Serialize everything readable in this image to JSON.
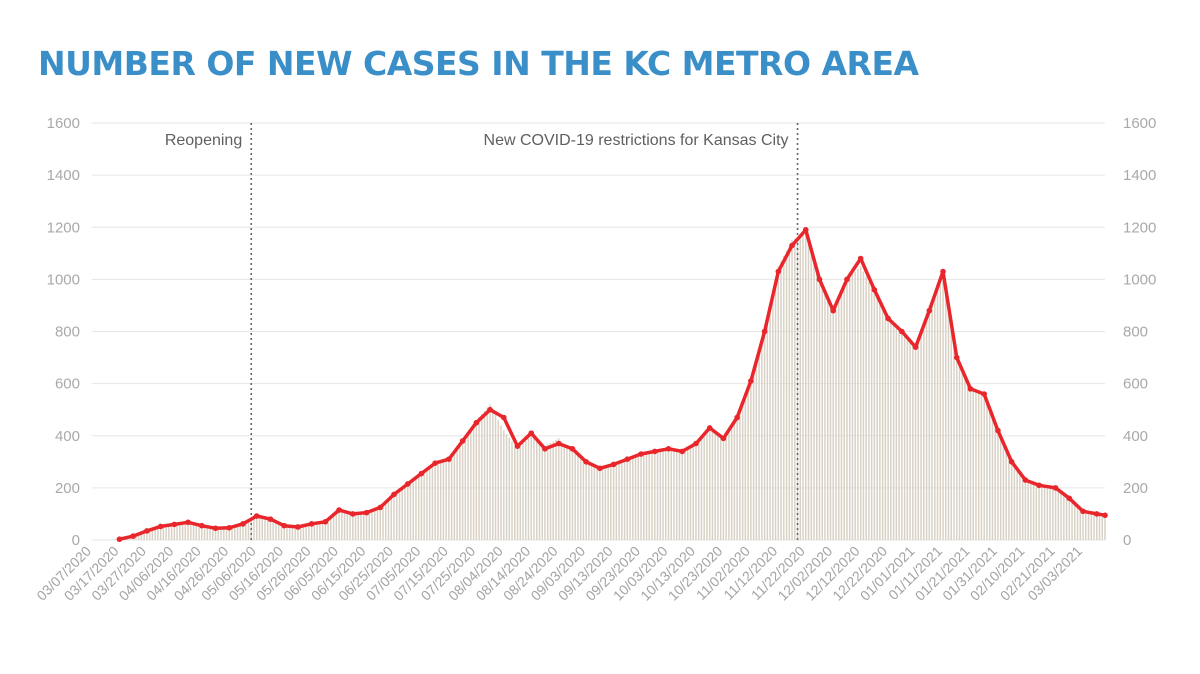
{
  "title": "NUMBER OF NEW CASES IN THE KC METRO AREA",
  "colors": {
    "title": "#3b8fc8",
    "bars": "#d9d1c5",
    "average_line": "#e8262b",
    "grid": "#e6e6e6",
    "annotation_line": "#666666"
  },
  "chart_data": {
    "type": "bar",
    "description_series": [
      {
        "kind": "bar",
        "values_ref": "daily_values"
      },
      {
        "kind": "line",
        "values_ref": "average_values"
      }
    ],
    "x_start": "03/07/2020",
    "x_end": "03/11/2021",
    "x_tick_labels": [
      "03/07/2020",
      "03/17/2020",
      "03/27/2020",
      "04/06/2020",
      "04/16/2020",
      "04/26/2020",
      "05/06/2020",
      "05/16/2020",
      "05/26/2020",
      "06/05/2020",
      "06/15/2020",
      "06/25/2020",
      "07/05/2020",
      "07/15/2020",
      "07/25/2020",
      "08/04/2020",
      "08/14/2020",
      "08/24/2020",
      "09/03/2020",
      "09/13/2020",
      "09/23/2020",
      "10/03/2020",
      "10/13/2020",
      "10/23/2020",
      "11/02/2020",
      "11/12/2020",
      "11/22/2020",
      "12/02/2020",
      "12/12/2020",
      "12/22/2020",
      "01/01/2021",
      "01/11/2021",
      "01/21/2021",
      "01/31/2021",
      "02/10/2021",
      "02/21/2021",
      "03/03/2021"
    ],
    "ylim": [
      0,
      1600
    ],
    "y_ticks": [
      "0",
      "200",
      "400",
      "600",
      "800",
      "1000",
      "1200",
      "1400",
      "1600"
    ],
    "grid": true,
    "xlabel": "",
    "ylabel": "",
    "annotations": [
      {
        "label": "Reopening",
        "date": "05/04/2020"
      },
      {
        "label": "New COVID-19 restrictions for Kansas City",
        "date": "11/19/2020"
      }
    ],
    "daily_points": [
      [
        "03/07/2020",
        0
      ],
      [
        "03/14/2020",
        0
      ],
      [
        "03/17/2020",
        5
      ],
      [
        "03/22/2020",
        20
      ],
      [
        "03/27/2020",
        45
      ],
      [
        "04/01/2020",
        55
      ],
      [
        "04/06/2020",
        60
      ],
      [
        "04/11/2020",
        70
      ],
      [
        "04/16/2020",
        55
      ],
      [
        "04/21/2020",
        45
      ],
      [
        "04/26/2020",
        50
      ],
      [
        "05/01/2020",
        60
      ],
      [
        "05/06/2020",
        90
      ],
      [
        "05/11/2020",
        80
      ],
      [
        "05/16/2020",
        55
      ],
      [
        "05/21/2020",
        50
      ],
      [
        "05/26/2020",
        60
      ],
      [
        "05/31/2020",
        70
      ],
      [
        "06/05/2020",
        110
      ],
      [
        "06/10/2020",
        100
      ],
      [
        "06/15/2020",
        100
      ],
      [
        "06/20/2020",
        120
      ],
      [
        "06/25/2020",
        170
      ],
      [
        "06/30/2020",
        210
      ],
      [
        "07/05/2020",
        260
      ],
      [
        "07/10/2020",
        300
      ],
      [
        "07/15/2020",
        320
      ],
      [
        "07/20/2020",
        380
      ],
      [
        "07/25/2020",
        460
      ],
      [
        "07/30/2020",
        520
      ],
      [
        "08/04/2020",
        420
      ],
      [
        "08/09/2020",
        350
      ],
      [
        "08/14/2020",
        400
      ],
      [
        "08/19/2020",
        360
      ],
      [
        "08/24/2020",
        390
      ],
      [
        "08/29/2020",
        340
      ],
      [
        "09/03/2020",
        300
      ],
      [
        "09/08/2020",
        270
      ],
      [
        "09/13/2020",
        290
      ],
      [
        "09/18/2020",
        310
      ],
      [
        "09/23/2020",
        330
      ],
      [
        "09/28/2020",
        340
      ],
      [
        "10/03/2020",
        350
      ],
      [
        "10/08/2020",
        340
      ],
      [
        "10/13/2020",
        380
      ],
      [
        "10/18/2020",
        430
      ],
      [
        "10/23/2020",
        400
      ],
      [
        "10/28/2020",
        480
      ],
      [
        "11/02/2020",
        600
      ],
      [
        "11/07/2020",
        800
      ],
      [
        "11/12/2020",
        1050
      ],
      [
        "11/17/2020",
        1150
      ],
      [
        "11/22/2020",
        1180
      ],
      [
        "11/27/2020",
        1000
      ],
      [
        "12/02/2020",
        900
      ],
      [
        "12/07/2020",
        1000
      ],
      [
        "12/12/2020",
        1050
      ],
      [
        "12/17/2020",
        950
      ],
      [
        "12/22/2020",
        850
      ],
      [
        "12/27/2020",
        800
      ],
      [
        "01/01/2021",
        750
      ],
      [
        "01/06/2021",
        900
      ],
      [
        "01/11/2021",
        1000
      ],
      [
        "01/16/2021",
        700
      ],
      [
        "01/21/2021",
        580
      ],
      [
        "01/26/2021",
        560
      ],
      [
        "01/31/2021",
        420
      ],
      [
        "02/05/2021",
        300
      ],
      [
        "02/10/2021",
        230
      ],
      [
        "02/15/2021",
        210
      ],
      [
        "02/21/2021",
        200
      ],
      [
        "02/26/2021",
        160
      ],
      [
        "03/03/2021",
        110
      ],
      [
        "03/08/2021",
        100
      ],
      [
        "03/11/2021",
        90
      ]
    ],
    "average_points": [
      [
        "03/17/2020",
        3
      ],
      [
        "03/22/2020",
        15
      ],
      [
        "03/27/2020",
        35
      ],
      [
        "04/01/2020",
        52
      ],
      [
        "04/06/2020",
        60
      ],
      [
        "04/11/2020",
        68
      ],
      [
        "04/16/2020",
        55
      ],
      [
        "04/21/2020",
        45
      ],
      [
        "04/26/2020",
        47
      ],
      [
        "05/01/2020",
        62
      ],
      [
        "05/06/2020",
        92
      ],
      [
        "05/11/2020",
        80
      ],
      [
        "05/16/2020",
        55
      ],
      [
        "05/21/2020",
        50
      ],
      [
        "05/26/2020",
        62
      ],
      [
        "05/31/2020",
        70
      ],
      [
        "06/05/2020",
        115
      ],
      [
        "06/10/2020",
        100
      ],
      [
        "06/15/2020",
        105
      ],
      [
        "06/20/2020",
        125
      ],
      [
        "06/25/2020",
        175
      ],
      [
        "06/30/2020",
        215
      ],
      [
        "07/05/2020",
        255
      ],
      [
        "07/10/2020",
        295
      ],
      [
        "07/15/2020",
        310
      ],
      [
        "07/20/2020",
        380
      ],
      [
        "07/25/2020",
        450
      ],
      [
        "07/30/2020",
        500
      ],
      [
        "08/04/2020",
        470
      ],
      [
        "08/09/2020",
        360
      ],
      [
        "08/14/2020",
        410
      ],
      [
        "08/19/2020",
        350
      ],
      [
        "08/24/2020",
        370
      ],
      [
        "08/29/2020",
        350
      ],
      [
        "09/03/2020",
        300
      ],
      [
        "09/08/2020",
        275
      ],
      [
        "09/13/2020",
        290
      ],
      [
        "09/18/2020",
        310
      ],
      [
        "09/23/2020",
        330
      ],
      [
        "09/28/2020",
        340
      ],
      [
        "10/03/2020",
        350
      ],
      [
        "10/08/2020",
        340
      ],
      [
        "10/13/2020",
        370
      ],
      [
        "10/18/2020",
        430
      ],
      [
        "10/23/2020",
        390
      ],
      [
        "10/28/2020",
        470
      ],
      [
        "11/02/2020",
        610
      ],
      [
        "11/07/2020",
        800
      ],
      [
        "11/12/2020",
        1030
      ],
      [
        "11/17/2020",
        1130
      ],
      [
        "11/22/2020",
        1190
      ],
      [
        "11/27/2020",
        1000
      ],
      [
        "12/02/2020",
        880
      ],
      [
        "12/07/2020",
        1000
      ],
      [
        "12/12/2020",
        1080
      ],
      [
        "12/17/2020",
        960
      ],
      [
        "12/22/2020",
        850
      ],
      [
        "12/27/2020",
        800
      ],
      [
        "01/01/2021",
        740
      ],
      [
        "01/06/2021",
        880
      ],
      [
        "01/11/2021",
        1030
      ],
      [
        "01/16/2021",
        700
      ],
      [
        "01/21/2021",
        580
      ],
      [
        "01/26/2021",
        560
      ],
      [
        "01/31/2021",
        420
      ],
      [
        "02/05/2021",
        300
      ],
      [
        "02/10/2021",
        230
      ],
      [
        "02/15/2021",
        210
      ],
      [
        "02/21/2021",
        200
      ],
      [
        "02/26/2021",
        160
      ],
      [
        "03/03/2021",
        110
      ],
      [
        "03/08/2021",
        100
      ],
      [
        "03/11/2021",
        95
      ]
    ]
  }
}
